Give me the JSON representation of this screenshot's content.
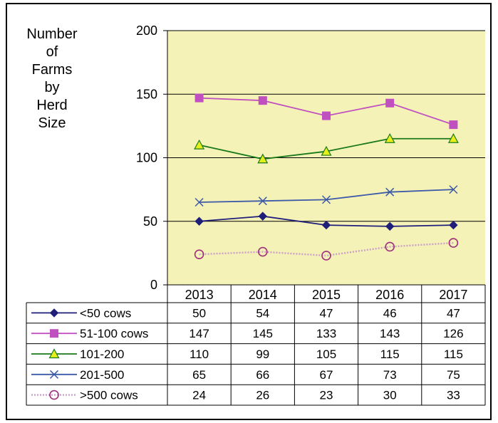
{
  "chart_data": {
    "type": "line",
    "ylabel": "Number\nof\nFarms\nby\nHerd\nSize",
    "ylim": [
      0,
      200
    ],
    "yticks": [
      0,
      50,
      100,
      150,
      200
    ],
    "grid": true,
    "categories": [
      "2013",
      "2014",
      "2015",
      "2016",
      "2017"
    ],
    "legend_placement": "data-table",
    "series": [
      {
        "name": "<50 cows",
        "values": [
          50,
          54,
          47,
          46,
          47
        ],
        "color": "#1f1f7a",
        "marker": "diamond"
      },
      {
        "name": "51-100 cows",
        "values": [
          147,
          145,
          133,
          143,
          126
        ],
        "color": "#c050c0",
        "marker": "square"
      },
      {
        "name": "101-200",
        "values": [
          110,
          99,
          105,
          115,
          115
        ],
        "color": "#1a7a1a",
        "marker": "triangle"
      },
      {
        "name": "201-500",
        "values": [
          65,
          66,
          67,
          73,
          75
        ],
        "color": "#3d5aa8",
        "marker": "x"
      },
      {
        "name": ">500 cows",
        "values": [
          24,
          26,
          23,
          30,
          33
        ],
        "color": "#a0307a",
        "marker": "circle",
        "dotted": true
      }
    ]
  },
  "colors": {
    "plot_background": "#f5f2b8",
    "gridline": "#000000"
  }
}
